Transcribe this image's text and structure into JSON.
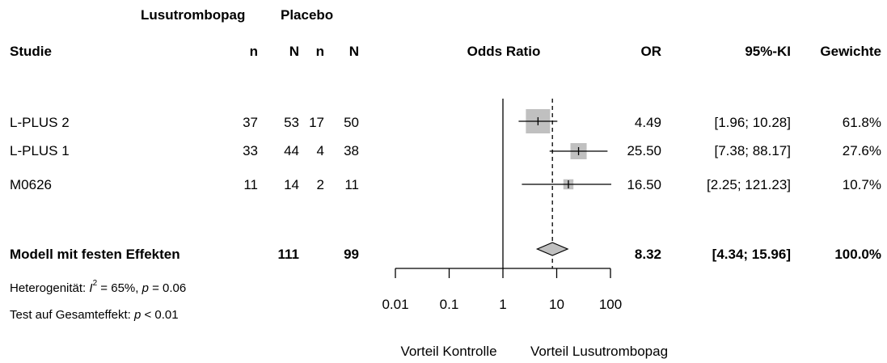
{
  "chart_data": {
    "type": "forest",
    "group_header": {
      "treatment": "Lusutrombopag",
      "control": "Placebo"
    },
    "columns": {
      "study": "Studie",
      "n": "n",
      "N": "N",
      "effect": "Odds Ratio",
      "or": "OR",
      "ci": "95%-KI",
      "weight": "Gewichte"
    },
    "studies": [
      {
        "name": "L-PLUS 2",
        "n1": "37",
        "N1": "53",
        "n2": "17",
        "N2": "50",
        "or_text": "4.49",
        "ci_text": "[1.96; 10.28]",
        "weight_text": "61.8%",
        "or": 4.49,
        "lower": 1.96,
        "upper": 10.28,
        "weight": 61.8
      },
      {
        "name": "L-PLUS 1",
        "n1": "33",
        "N1": "44",
        "n2": "4",
        "N2": "38",
        "or_text": "25.50",
        "ci_text": "[7.38; 88.17]",
        "weight_text": "27.6%",
        "or": 25.5,
        "lower": 7.38,
        "upper": 88.17,
        "weight": 27.6
      },
      {
        "name": "M0626",
        "n1": "11",
        "N1": "14",
        "n2": "2",
        "N2": "11",
        "or_text": "16.50",
        "ci_text": "[2.25; 121.23]",
        "weight_text": "10.7%",
        "or": 16.5,
        "lower": 2.25,
        "upper": 121.23,
        "weight": 10.7
      }
    ],
    "pooled": {
      "name": "Modell mit festen Effekten",
      "N1": "111",
      "N2": "99",
      "or_text": "8.32",
      "ci_text": "[4.34; 15.96]",
      "weight_text": "100.0%",
      "or": 8.32,
      "lower": 4.34,
      "upper": 15.96
    },
    "heterogeneity": {
      "prefix": "Heterogenität: ",
      "i_symbol": "I",
      "i_sup": "2",
      "i_value": " = 65%, ",
      "p_symbol": "p",
      "p_value": " = 0.06"
    },
    "overall_test": {
      "prefix": "Test auf Gesamteffekt: ",
      "p_symbol": "p",
      "p_value": " < 0.01"
    },
    "x_axis": {
      "scale": "log",
      "ticks": [
        0.01,
        0.1,
        1,
        10,
        100
      ],
      "tick_labels": [
        "0.01",
        "0.1",
        "1",
        "10",
        "100"
      ],
      "null_value": 1
    },
    "direction_labels": {
      "left": "Vorteil Kontrolle",
      "right": "Vorteil Lusutrombopag"
    },
    "colors": {
      "square": "#c0c0c0",
      "diamond": "#c0c0c0",
      "line": "#000000"
    }
  }
}
